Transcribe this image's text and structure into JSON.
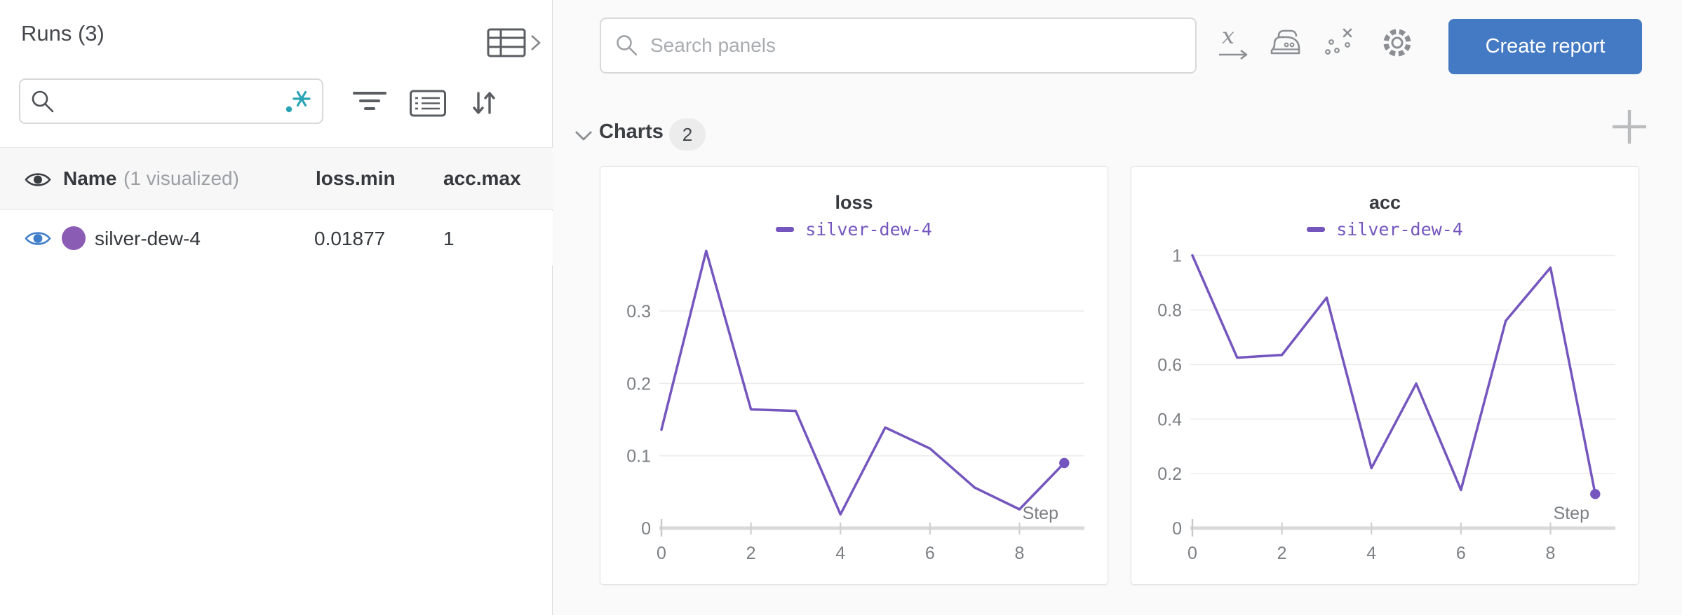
{
  "sidebar": {
    "title": "Runs (3)",
    "search": {
      "value": "",
      "placeholder": "",
      "regex_toggle": ".*"
    },
    "table": {
      "header": {
        "name": "Name",
        "annotation": "(1 visualized)",
        "col1": "loss.min",
        "col2": "acc.max"
      },
      "rows": [
        {
          "name": "silver-dew-4",
          "loss_min": "0.01877",
          "acc_max": "1",
          "dot_color": "#8B5CB4",
          "visible": true
        }
      ]
    }
  },
  "topbar": {
    "search_placeholder": "Search panels",
    "create_report": "Create report"
  },
  "charts_section": {
    "title": "Charts",
    "count": "2"
  },
  "chart_data": [
    {
      "type": "line",
      "title": "loss",
      "xlabel": "Step",
      "x": [
        0,
        1,
        2,
        3,
        4,
        5,
        6,
        7,
        8,
        9
      ],
      "series": [
        {
          "name": "silver-dew-4",
          "color": "#7456BE",
          "values": [
            0.136,
            0.383,
            0.164,
            0.162,
            0.019,
            0.139,
            0.11,
            0.056,
            0.026,
            0.09
          ]
        }
      ],
      "x_ticks": [
        0,
        2,
        4,
        6,
        8
      ],
      "y_ticks": [
        0,
        0.1,
        0.2,
        0.3
      ],
      "ylim": [
        0,
        0.39
      ],
      "xlim": [
        0,
        9.45
      ],
      "grid": true,
      "legend_position": "top",
      "end_marker": true
    },
    {
      "type": "line",
      "title": "acc",
      "xlabel": "Step",
      "x": [
        0,
        1,
        2,
        3,
        4,
        5,
        6,
        7,
        8,
        9
      ],
      "series": [
        {
          "name": "silver-dew-4",
          "color": "#7456BE",
          "values": [
            1.0,
            0.625,
            0.635,
            0.845,
            0.22,
            0.53,
            0.14,
            0.76,
            0.955,
            0.125
          ]
        }
      ],
      "x_ticks": [
        0,
        2,
        4,
        6,
        8
      ],
      "y_ticks": [
        0,
        0.2,
        0.4,
        0.6,
        0.8,
        1
      ],
      "ylim": [
        0,
        1.035
      ],
      "xlim": [
        0,
        9.45
      ],
      "grid": true,
      "legend_position": "top",
      "end_marker": true
    }
  ],
  "colors": {
    "accent_blue": "#447AC4",
    "run_purple_line": "#7456BE",
    "run_purple_dot": "#8B5CB4",
    "teal_regex": "#2AA4B5",
    "eye_blue": "#3E7DC9"
  }
}
